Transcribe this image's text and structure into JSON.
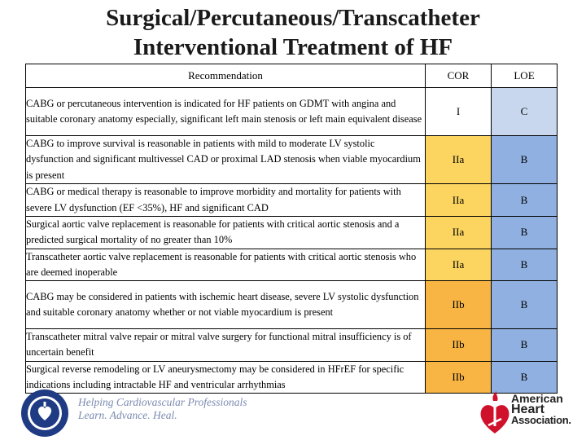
{
  "title_line1": "Surgical/Percutaneous/Transcatheter",
  "title_line2": "Interventional Treatment of HF",
  "headers": {
    "recommendation": "Recommendation",
    "cor": "COR",
    "loe": "LOE"
  },
  "rows": [
    {
      "text": "CABG or percutaneous intervention is indicated for HF patients on GDMT with angina and suitable coronary anatomy especially, significant left main stenosis or left main equivalent  disease",
      "cor": "I",
      "loe": "C"
    },
    {
      "text": "CABG to improve survival is reasonable in patients with mild to moderate LV systolic dysfunction and significant multivessel CAD or proximal LAD stenosis when viable myocardium is present",
      "cor": "IIa",
      "loe": "B"
    },
    {
      "text": "CABG or medical therapy is reasonable to improve morbidity and mortality for patients with severe LV dysfunction (EF <35%), HF and significant CAD",
      "cor": "IIa",
      "loe": "B"
    },
    {
      "text": "Surgical aortic valve replacement is reasonable for patients with critical aortic stenosis and a predicted surgical mortality of no greater than 10%",
      "cor": "IIa",
      "loe": "B"
    },
    {
      "text": "Transcatheter aortic valve replacement is reasonable for patients with critical aortic stenosis who are deemed inoperable",
      "cor": "IIa",
      "loe": "B"
    },
    {
      "text": "CABG may be considered in patients with ischemic heart disease, severe LV systolic dysfunction and suitable coronary anatomy whether or not viable myocardium is present",
      "cor": "IIb",
      "loe": "B"
    },
    {
      "text": "Transcatheter mitral valve repair or mitral valve surgery for functional mitral insufficiency is of uncertain benefit",
      "cor": "IIb",
      "loe": "B"
    },
    {
      "text": "Surgical reverse remodeling or LV aneurysmectomy may be considered in HFrEF for specific indications including intractable HF and ventricular arrhythmias",
      "cor": "IIb",
      "loe": "B"
    }
  ],
  "footer": {
    "tagline_line1": "Helping Cardiovascular Professionals",
    "tagline_line2": "Learn. Advance. Heal.",
    "aha_line1": "American",
    "aha_line2": "Heart",
    "aha_line3": "Association."
  },
  "colors": {
    "cor_IIa": "#fbd560",
    "cor_IIb": "#f8b544",
    "loe_C": "#c8d7ee",
    "loe_B": "#8fb0e0",
    "aha_red": "#d0112b",
    "acc_blue": "#1f3b84"
  }
}
